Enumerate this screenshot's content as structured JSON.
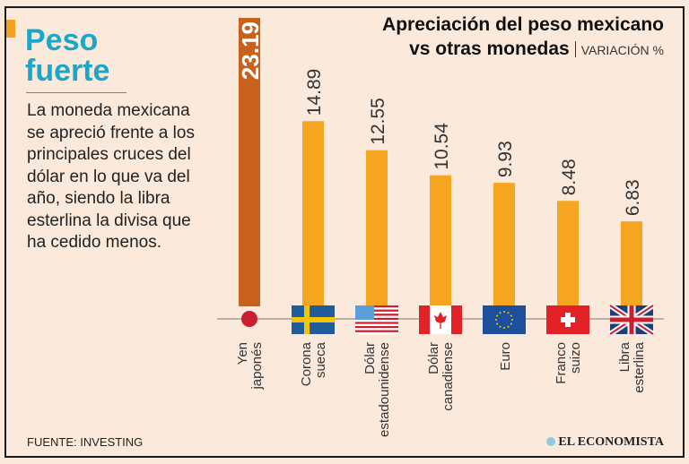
{
  "headline": {
    "line1": "Peso",
    "line2": "fuerte"
  },
  "description": "La moneda mexicana se apreció frente a los principales cruces del dólar en lo que va del año, siendo la libra esterlina la divisa que ha cedido menos.",
  "source": "FUENTE: INVESTING",
  "logo": "EL ECONOMISTA",
  "colors": {
    "bar": "#f5a51f",
    "highlight": "#c8611c",
    "headline": "#1ca7c8",
    "background": "#fbe9db"
  },
  "chart_data": {
    "type": "bar",
    "title_line1": "Apreciación del peso mexicano",
    "title_line2": "vs otras monedas",
    "subtitle": "VARIACIÓN %",
    "categories": [
      {
        "line1": "Yen",
        "line2": "japonés",
        "flag": "japan"
      },
      {
        "line1": "Corona",
        "line2": "sueca",
        "flag": "sweden"
      },
      {
        "line1": "Dólar",
        "line2": "estadounidense",
        "flag": "usa"
      },
      {
        "line1": "Dólar",
        "line2": "canadiense",
        "flag": "canada"
      },
      {
        "line1": "Euro",
        "line2": "",
        "flag": "eu"
      },
      {
        "line1": "Franco",
        "line2": "suizo",
        "flag": "switzerland"
      },
      {
        "line1": "Libra",
        "line2": "esterlina",
        "flag": "uk"
      }
    ],
    "values": [
      23.19,
      14.89,
      12.55,
      10.54,
      9.93,
      8.48,
      6.83
    ],
    "labels": [
      "23.19",
      "14.89",
      "12.55",
      "10.54",
      "9.93",
      "8.48",
      "6.83"
    ],
    "ylim": [
      0,
      23.19
    ]
  }
}
